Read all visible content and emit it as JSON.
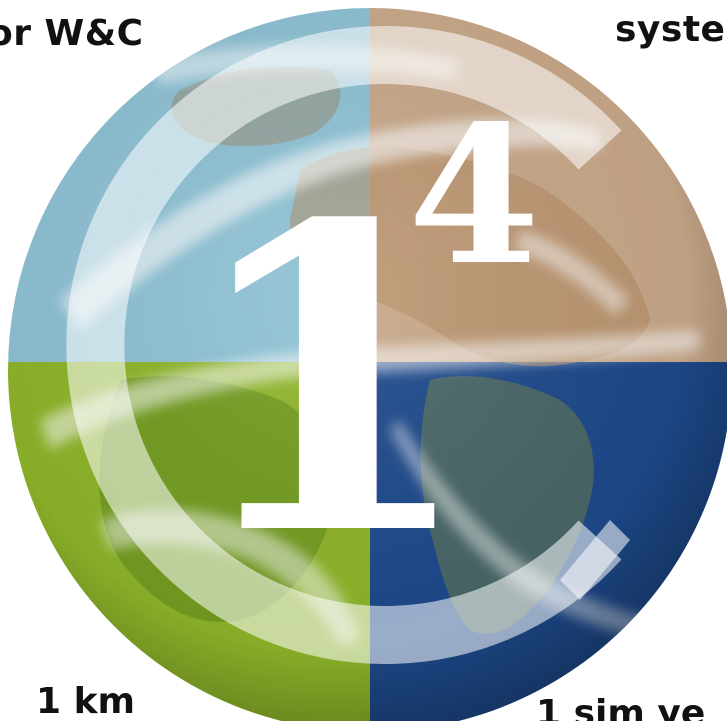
{
  "labels": {
    "top_left": "or W&C",
    "top_right": "syste",
    "bottom_left": "1 km",
    "bottom_right": "1 sim ye"
  },
  "logo": {
    "numeral": "1",
    "exponent": "4"
  },
  "colors": {
    "quadrant_top_left": "#8fc3d6",
    "quadrant_top_right": "#c9a98a",
    "quadrant_bottom_left": "#8fb62a",
    "quadrant_bottom_right": "#1e4a8c",
    "ring": "#ffffff",
    "text": "#111111"
  }
}
